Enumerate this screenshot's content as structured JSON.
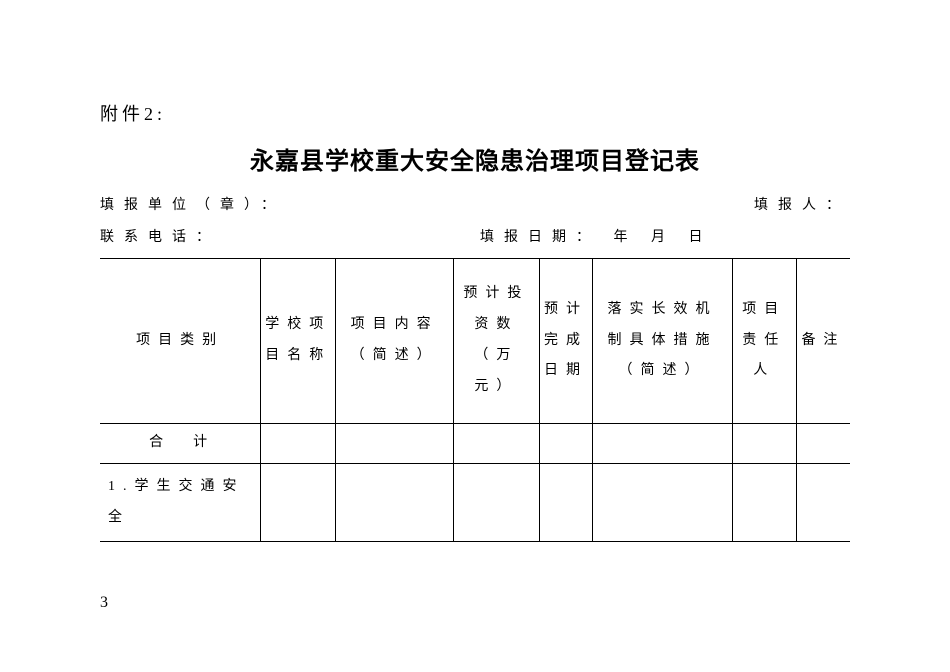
{
  "attachment_label": "附件2:",
  "title": "永嘉县学校重大安全隐患治理项目登记表",
  "meta": {
    "reporting_unit_label": "填报单位（章）：",
    "reporter_label": "填报人：",
    "contact_phone_label": "联系电话：",
    "report_date_label": "填报日期：",
    "year_label": "年",
    "month_label": "月",
    "day_label": "日"
  },
  "table": {
    "headers": {
      "category": "项目类别",
      "school_project": "学校项目名称",
      "content": "项目内容（简述）",
      "investment": "预计投资数（万元）",
      "completion_date": "预计完成日期",
      "measures": "落实长效机制具体措施（简述）",
      "responsible_person": "项目责任人",
      "remark": "备注"
    },
    "rows": {
      "total": {
        "label": "合计",
        "school_project": "",
        "content": "",
        "investment": "",
        "completion_date": "",
        "measures": "",
        "responsible_person": "",
        "remark": ""
      },
      "item1": {
        "label": "1.学生交通安全",
        "school_project": "",
        "content": "",
        "investment": "",
        "completion_date": "",
        "measures": "",
        "responsible_person": "",
        "remark": ""
      }
    }
  },
  "page_number": "3",
  "styling": {
    "background_color": "#ffffff",
    "text_color": "#000000",
    "border_color": "#000000",
    "title_fontsize": 24,
    "body_fontsize": 14,
    "attachment_fontsize": 18,
    "letter_spacing_wide": 10,
    "letter_spacing_cell": 8,
    "font_family": "SimSun"
  }
}
